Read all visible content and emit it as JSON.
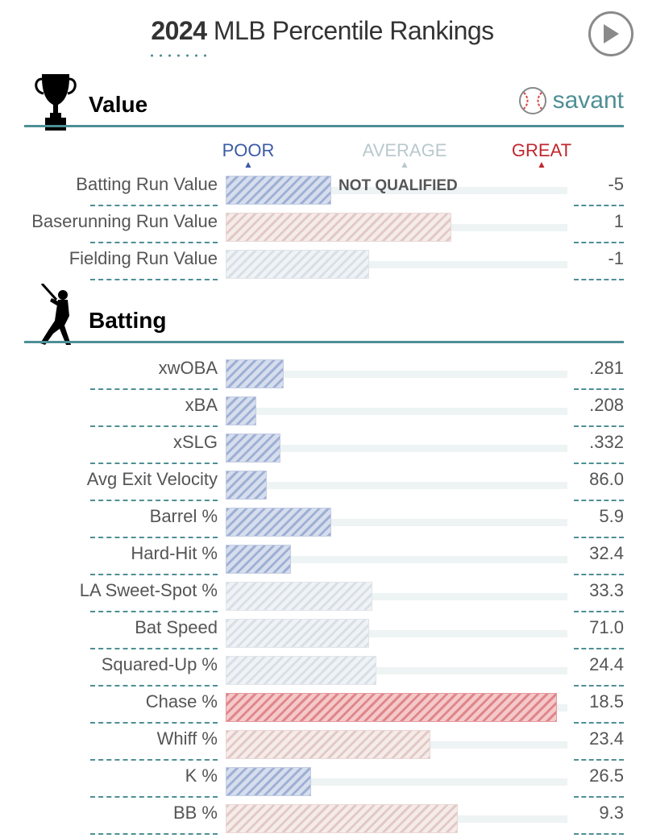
{
  "title": {
    "year": "2024",
    "rest": " MLB Percentile Rankings"
  },
  "scale": {
    "poor": "POOR",
    "average": "AVERAGE",
    "great": "GREAT"
  },
  "sections": [
    {
      "title": "Value",
      "brand": "savant"
    },
    {
      "title": "Batting"
    }
  ],
  "colors": {
    "poor": "#3b5ba5",
    "average": "#b9c9cc",
    "great": "#c0282d",
    "accent": "#4e8f95"
  },
  "icons": [
    "play-icon",
    "trophy-icon",
    "baseball-icon",
    "batter-icon"
  ],
  "chart_data": {
    "type": "bar",
    "orientation": "horizontal",
    "xlim": [
      0,
      100
    ],
    "groups": [
      {
        "name": "Value",
        "rows": [
          {
            "label": "Batting Run Value",
            "percentile": 31,
            "value": "-5",
            "note": "NOT QUALIFIED"
          },
          {
            "label": "Baserunning Run Value",
            "percentile": 66,
            "value": "1"
          },
          {
            "label": "Fielding Run Value",
            "percentile": 42,
            "value": "-1"
          }
        ]
      },
      {
        "name": "Batting",
        "rows": [
          {
            "label": "xwOBA",
            "percentile": 17,
            "value": ".281"
          },
          {
            "label": "xBA",
            "percentile": 9,
            "value": ".208"
          },
          {
            "label": "xSLG",
            "percentile": 16,
            "value": ".332"
          },
          {
            "label": "Avg Exit Velocity",
            "percentile": 12,
            "value": "86.0"
          },
          {
            "label": "Barrel %",
            "percentile": 31,
            "value": "5.9"
          },
          {
            "label": "Hard-Hit %",
            "percentile": 19,
            "value": "32.4"
          },
          {
            "label": "LA Sweet-Spot %",
            "percentile": 43,
            "value": "33.3"
          },
          {
            "label": "Bat Speed",
            "percentile": 42,
            "value": "71.0"
          },
          {
            "label": "Squared-Up %",
            "percentile": 44,
            "value": "24.4"
          },
          {
            "label": "Chase %",
            "percentile": 97,
            "value": "18.5"
          },
          {
            "label": "Whiff %",
            "percentile": 60,
            "value": "23.4"
          },
          {
            "label": "K %",
            "percentile": 25,
            "value": "26.5"
          },
          {
            "label": "BB %",
            "percentile": 68,
            "value": "9.3"
          }
        ]
      }
    ]
  }
}
